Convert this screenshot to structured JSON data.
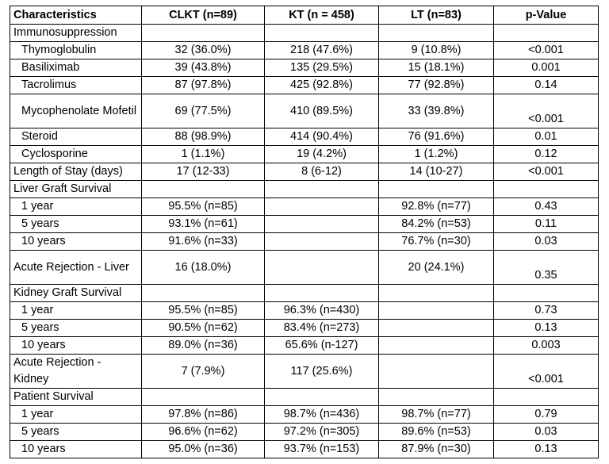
{
  "table": {
    "headers": [
      "Characteristics",
      "CLKT (n=89)",
      "KT (n = 458)",
      "LT (n=83)",
      "p-Value"
    ],
    "rows": [
      {
        "label": "Immunosuppression",
        "indent": false,
        "cells": [
          "",
          "",
          "",
          ""
        ]
      },
      {
        "label": "Thymoglobulin",
        "indent": true,
        "cells": [
          "32 (36.0%)",
          "218 (47.6%)",
          "9 (10.8%)",
          "<0.001"
        ]
      },
      {
        "label": "Basiliximab",
        "indent": true,
        "cells": [
          "39 (43.8%)",
          "135 (29.5%)",
          "15 (18.1%)",
          "0.001"
        ]
      },
      {
        "label": "Tacrolimus",
        "indent": true,
        "cells": [
          "87 (97.8%)",
          "425 (92.8%)",
          "77 (92.8%)",
          "0.14"
        ]
      },
      {
        "label": "Mycophenolate Mofetil",
        "indent": true,
        "tall": true,
        "cells": [
          "69 (77.5%)",
          "410 (89.5%)",
          "33 (39.8%)",
          "<0.001"
        ]
      },
      {
        "label": "Steroid",
        "indent": true,
        "cells": [
          "88 (98.9%)",
          "414 (90.4%)",
          "76 (91.6%)",
          "0.01"
        ]
      },
      {
        "label": "Cyclosporine",
        "indent": true,
        "cells": [
          "1 (1.1%)",
          "19 (4.2%)",
          "1 (1.2%)",
          "0.12"
        ]
      },
      {
        "label": "Length of Stay (days)",
        "indent": false,
        "cells": [
          "17 (12-33)",
          "8 (6-12)",
          "14 (10-27)",
          "<0.001"
        ]
      },
      {
        "label": "Liver Graft Survival",
        "indent": false,
        "cells": [
          "",
          "",
          "",
          ""
        ]
      },
      {
        "label": "1 year",
        "indent": true,
        "cells": [
          "95.5% (n=85)",
          "",
          "92.8% (n=77)",
          "0.43"
        ]
      },
      {
        "label": "5 years",
        "indent": true,
        "cells": [
          "93.1% (n=61)",
          "",
          "84.2% (n=53)",
          "0.11"
        ]
      },
      {
        "label": "10 years",
        "indent": true,
        "cells": [
          "91.6% (n=33)",
          "",
          "76.7% (n=30)",
          "0.03"
        ]
      },
      {
        "label": "Acute Rejection - Liver",
        "indent": false,
        "tall": true,
        "cells": [
          "16 (18.0%)",
          "",
          "20 (24.1%)",
          "0.35"
        ]
      },
      {
        "label": "Kidney Graft Survival",
        "indent": false,
        "cells": [
          "",
          "",
          "",
          ""
        ]
      },
      {
        "label": "1 year",
        "indent": true,
        "cells": [
          "95.5% (n=85)",
          "96.3% (n=430)",
          "",
          "0.73"
        ]
      },
      {
        "label": "5 years",
        "indent": true,
        "cells": [
          "90.5% (n=62)",
          "83.4% (n=273)",
          "",
          "0.13"
        ]
      },
      {
        "label": "10 years",
        "indent": true,
        "cells": [
          "89.0% (n=36)",
          "65.6% (n-127)",
          "",
          "0.003"
        ]
      },
      {
        "label": "Acute Rejection - Kidney",
        "indent": false,
        "tall": true,
        "cells": [
          "7 (7.9%)",
          "117 (25.6%)",
          "",
          "<0.001"
        ]
      },
      {
        "label": "Patient Survival",
        "indent": false,
        "cells": [
          "",
          "",
          "",
          ""
        ]
      },
      {
        "label": "1 year",
        "indent": true,
        "cells": [
          "97.8% (n=86)",
          "98.7% (n=436)",
          "98.7% (n=77)",
          "0.79"
        ]
      },
      {
        "label": "5 years",
        "indent": true,
        "cells": [
          "96.6% (n=62)",
          "97.2% (n=305)",
          "89.6% (n=53)",
          "0.03"
        ]
      },
      {
        "label": "10 years",
        "indent": true,
        "cells": [
          "95.0% (n=36)",
          "93.7% (n=153)",
          "87.9% (n=30)",
          "0.13"
        ]
      }
    ]
  }
}
